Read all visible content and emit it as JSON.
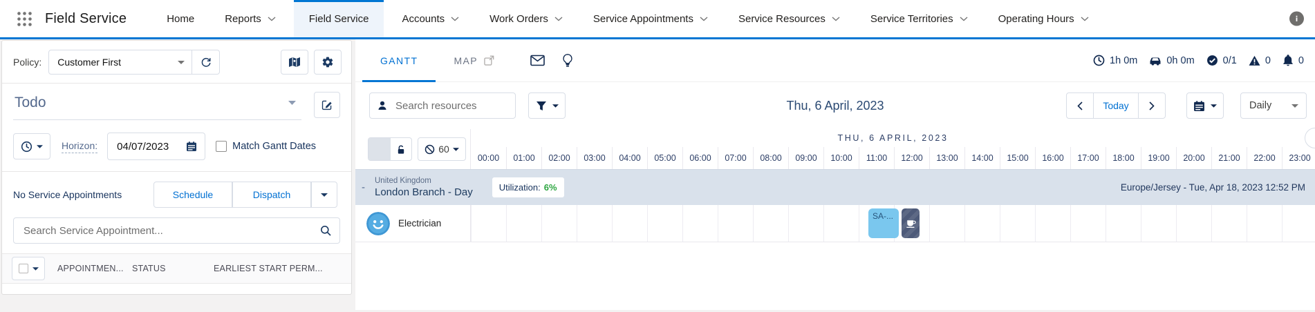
{
  "header": {
    "app_title": "Field Service",
    "nav": {
      "items": [
        {
          "label": "Home",
          "chevron": false,
          "active": false
        },
        {
          "label": "Reports",
          "chevron": true,
          "active": false
        },
        {
          "label": "Field Service",
          "chevron": false,
          "active": true
        },
        {
          "label": "Accounts",
          "chevron": true,
          "active": false
        },
        {
          "label": "Work Orders",
          "chevron": true,
          "active": false
        },
        {
          "label": "Service Appointments",
          "chevron": true,
          "active": false
        },
        {
          "label": "Service Resources",
          "chevron": true,
          "active": false
        },
        {
          "label": "Service Territories",
          "chevron": true,
          "active": false
        },
        {
          "label": "Operating Hours",
          "chevron": true,
          "active": false
        }
      ]
    }
  },
  "left_panel": {
    "policy": {
      "label": "Policy:",
      "value": "Customer First"
    },
    "list_filter": {
      "value": "Todo"
    },
    "horizon": {
      "label": "Horizon:",
      "date": "04/07/2023",
      "match_gantt_label": "Match Gantt Dates"
    },
    "appointments": {
      "empty_text": "No Service Appointments",
      "schedule_label": "Schedule",
      "dispatch_label": "Dispatch"
    },
    "search": {
      "placeholder": "Search Service Appointment..."
    },
    "table": {
      "headers": [
        "APPOINTMEN...",
        "STATUS",
        "EARLIEST START PERM..."
      ]
    }
  },
  "gantt_panel": {
    "tabs": {
      "gantt": "GANTT",
      "map": "MAP"
    },
    "stats": {
      "scheduled": "1h 0m",
      "travel": "0h 0m",
      "completed": "0/1",
      "violations": "0",
      "notifications": "0"
    },
    "toolbar": {
      "resource_search_placeholder": "Search resources",
      "date_title": "Thu, 6 April, 2023",
      "today_label": "Today",
      "view_mode": "Daily"
    },
    "timeline": {
      "zoom_minutes": "60",
      "date_header": "THU, 6 APRIL, 2023",
      "hours": [
        "00:00",
        "01:00",
        "02:00",
        "03:00",
        "04:00",
        "05:00",
        "06:00",
        "07:00",
        "08:00",
        "09:00",
        "10:00",
        "11:00",
        "12:00",
        "13:00",
        "14:00",
        "15:00",
        "16:00",
        "17:00",
        "18:00",
        "19:00",
        "20:00",
        "21:00",
        "22:00",
        "23:00"
      ],
      "territory": {
        "collapse_glyph": "-",
        "country": "United Kingdom",
        "name": "London Branch - Day",
        "utilization_label": "Utilization:",
        "utilization_value": "6%",
        "clock_info": "Europe/Jersey - Tue, Apr 18, 2023 12:52 PM"
      },
      "resource": {
        "name": "Electrician"
      },
      "appointment": {
        "label": "SA-..."
      }
    }
  },
  "icons": {
    "app_launcher": "grid-dots",
    "header_info": "info-circle",
    "policy_refresh": "refresh-arrow",
    "map_button": "map",
    "settings_button": "gear",
    "edit_filter": "pencil-square",
    "time_menu": "clock",
    "date_picker": "calendar",
    "appointment_search": "magnifier",
    "map_tab_external": "external-link",
    "email": "envelope",
    "insights": "lightbulb",
    "resource_search": "person",
    "resource_filter": "funnel",
    "stat_scheduled": "clock",
    "stat_travel": "car",
    "stat_completed": "check-circle",
    "stat_violations": "warning-triangle",
    "stat_notifications": "bell",
    "gantt_lock": "padlock-open",
    "gantt_zoom": "slash-circle",
    "break_block": "coffee-cup",
    "resource_avatar": "smiley-face"
  },
  "colors": {
    "accent": "#0176d3",
    "link_blue": "#0070d2",
    "navy": "#16325c",
    "utilization_green": "#2da641",
    "appointment_blue": "#7ac7ee",
    "break_navy": "#4d5a79",
    "territory_bg": "#d9e1eb",
    "avatar_blue": "#4ca6de"
  }
}
